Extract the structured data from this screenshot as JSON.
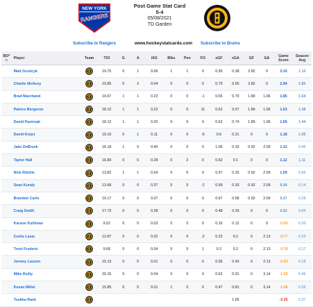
{
  "header": {
    "title": "Post Game Stat Card",
    "score": "5-4",
    "date": "05/08/2021",
    "venue": "TD Garden",
    "subscribe_rangers": "Subscribe to Rangers",
    "subscribe_bruins": "Subscribe to Bruins",
    "website": "www.hockeystatcards.com",
    "rangers_logo_text_top": "NEW YORK",
    "rangers_logo_text_bottom": "RANGERS"
  },
  "columns": {
    "bo": "BO*",
    "player": "Player",
    "team": "Team",
    "toi": "TOI",
    "g": "G",
    "a": "A",
    "ixg": "iXG",
    "blks": "Blks",
    "pen": "Pen",
    "fo": "FO",
    "xgf": "xGF",
    "xga": "xGA",
    "gf": "GF",
    "ga": "GA",
    "gs1": "Game",
    "gs2": "Score",
    "sa1": "Season",
    "sa2": "Avg"
  },
  "colors": {
    "link": "#1f6fd1",
    "gs_blue": "#1f5fcc",
    "gs_lightblue": "#3d8fd9",
    "gs_orange": "#f0a030",
    "gs_red": "#d63a2a",
    "bruins_gold": "#fcb514",
    "rangers_blue": "#0038a8"
  },
  "players": [
    {
      "bo": "",
      "name": "Matt Grzelcyk",
      "toi": "19.70",
      "g": "0",
      "a": "1",
      "ixg": "0.06",
      "blks": "1",
      "pen": "1",
      "fo": "0",
      "xgf": "0.95",
      "xga": "0.38",
      "gf": "2.82",
      "ga": "0",
      "gs": "3.10",
      "sa": "1.10",
      "gsc": "#1f5fcc",
      "sac": "#1f5fcc"
    },
    {
      "bo": "",
      "name": "Charlie McAvoy",
      "toi": "23.85",
      "g": "0",
      "a": "2",
      "ixg": "0.04",
      "blks": "0",
      "pen": "0",
      "fo": "0",
      "xgf": "0.79",
      "xga": "0.55",
      "gf": "2.82",
      "ga": "0",
      "gs": "2.94",
      "sa": "1.85",
      "gsc": "#1f5fcc",
      "sac": "#1f5fcc"
    },
    {
      "bo": "",
      "name": "Brad Marchand",
      "toi": "19.67",
      "g": "1",
      "a": "1",
      "ixg": "0.22",
      "blks": "0",
      "pen": "0",
      "fo": "-1",
      "xgf": "0.65",
      "xga": "0.79",
      "gf": "1.89",
      "ga": "1.06",
      "gs": "1.85",
      "sa": "1.64",
      "gsc": "#1f5fcc",
      "sac": "#1f5fcc"
    },
    {
      "bo": "",
      "name": "Patrice Bergeron",
      "toi": "18.12",
      "g": "1",
      "a": "1",
      "ixg": "0.22",
      "blks": "0",
      "pen": "0",
      "fo": "11",
      "xgf": "0.62",
      "xga": "0.57",
      "gf": "1.89",
      "ga": "1.06",
      "gs": "1.63",
      "sa": "1.38",
      "gsc": "#1f5fcc",
      "sac": "#1f5fcc"
    },
    {
      "bo": "",
      "name": "David Pastrnak",
      "toi": "18.12",
      "g": "1",
      "a": "1",
      "ixg": "0.20",
      "blks": "0",
      "pen": "0",
      "fo": "0",
      "xgf": "0.62",
      "xga": "0.74",
      "gf": "1.89",
      "ga": "1.06",
      "gs": "1.56",
      "sa": "1.44",
      "gsc": "#1f5fcc",
      "sac": "#1f5fcc"
    },
    {
      "bo": "",
      "name": "David Krejci",
      "toi": "19.10",
      "g": "0",
      "a": "1",
      "ixg": "0.11",
      "blks": "0",
      "pen": "0",
      "fo": "-5",
      "xgf": "0.6",
      "xga": "0.31",
      "gf": "0",
      "ga": "0",
      "gs": "1.18",
      "sa": "1.05",
      "gsc": "#1f5fcc",
      "sac": "#1f5fcc"
    },
    {
      "bo": "",
      "name": "Jake DeBrusk",
      "toi": "16.18",
      "g": "1",
      "a": "0",
      "ixg": "0.40",
      "blks": "0",
      "pen": "0",
      "fo": "0",
      "xgf": "1.06",
      "xga": "0.33",
      "gf": "0.92",
      "ga": "2.09",
      "gs": "1.12",
      "sa": "0.46",
      "gsc": "#1f5fcc",
      "sac": "#3d8fd9"
    },
    {
      "bo": "",
      "name": "Taylor Hall",
      "toi": "16.83",
      "g": "0",
      "a": "0",
      "ixg": "0.28",
      "blks": "0",
      "pen": "2",
      "fo": "0",
      "xgf": "0.62",
      "xga": "0.1",
      "gf": "0",
      "ga": "0",
      "gs": "1.12",
      "sa": "1.11",
      "gsc": "#1f5fcc",
      "sac": "#1f5fcc"
    },
    {
      "bo": "",
      "name": "Nick Ritchie",
      "toi": "13.82",
      "g": "1",
      "a": "1",
      "ixg": "0.54",
      "blks": "0",
      "pen": "0",
      "fo": "0",
      "xgf": "0.97",
      "xga": "0.33",
      "gf": "0.92",
      "ga": "2.09",
      "gs": "1.09",
      "sa": "0.56",
      "gsc": "#1f5fcc",
      "sac": "#3d8fd9"
    },
    {
      "bo": "",
      "name": "Sean Kuraly",
      "toi": "13.68",
      "g": "0",
      "a": "0",
      "ixg": "0.37",
      "blks": "0",
      "pen": "0",
      "fo": "-2",
      "xgf": "0.99",
      "xga": "0.33",
      "gf": "0.92",
      "ga": "2.09",
      "gs": "0.34",
      "sa": "0.14",
      "gsc": "#3d8fd9",
      "sac": "#3d8fd9"
    },
    {
      "bo": "",
      "name": "Brandon Carlo",
      "toi": "19.17",
      "g": "0",
      "a": "0",
      "ixg": "0.07",
      "blks": "0",
      "pen": "0",
      "fo": "0",
      "xgf": "0.67",
      "xga": "0.68",
      "gf": "0.92",
      "ga": "2.09",
      "gs": "0.27",
      "sa": "0.29",
      "gsc": "#3d8fd9",
      "sac": "#3d8fd9"
    },
    {
      "bo": "",
      "name": "Craig Smith",
      "toi": "17.73",
      "g": "0",
      "a": "0",
      "ixg": "0.28",
      "blks": "0",
      "pen": "0",
      "fo": "0",
      "xgf": "0.48",
      "xga": "0.29",
      "gf": "0",
      "ga": "0",
      "gs": "0.22",
      "sa": "0.84",
      "gsc": "#3d8fd9",
      "sac": "#3d8fd9"
    },
    {
      "bo": "",
      "name": "Karson Kuhlman",
      "toi": "9.52",
      "g": "0",
      "a": "0",
      "ixg": "0.03",
      "blks": "0",
      "pen": "0",
      "fo": "0",
      "xgf": "0.16",
      "xga": "0.12",
      "gf": "0",
      "ga": "0",
      "gs": "-0.03",
      "sa": "0.20",
      "gsc": "#f0a030",
      "sac": "#3d8fd9"
    },
    {
      "bo": "",
      "name": "Curtis Lazar",
      "toi": "12.87",
      "g": "0",
      "a": "0",
      "ixg": "0.02",
      "blks": "0",
      "pen": "0",
      "fo": "-2",
      "xgf": "0.22",
      "xga": "0.2",
      "gf": "0",
      "ga": "2.13",
      "gs": "-0.77",
      "sa": "0.25",
      "gsc": "#f0a030",
      "sac": "#3d8fd9"
    },
    {
      "bo": "",
      "name": "Trent Frederic",
      "toi": "9.68",
      "g": "0",
      "a": "0",
      "ixg": "0.04",
      "blks": "0",
      "pen": "0",
      "fo": "1",
      "xgf": "0.2",
      "xga": "0.2",
      "gf": "0",
      "ga": "2.13",
      "gs": "-0.78",
      "sa": "0.17",
      "gsc": "#f0a030",
      "sac": "#3d8fd9"
    },
    {
      "bo": "",
      "name": "Jeremy Lauzon",
      "toi": "15.13",
      "g": "0",
      "a": "0",
      "ixg": "0.01",
      "blks": "0",
      "pen": "0",
      "fo": "0",
      "xgf": "0.56",
      "xga": "0.43",
      "gf": "0",
      "ga": "2.13",
      "gs": "-0.93",
      "sa": "0.18",
      "gsc": "#f0a030",
      "sac": "#3d8fd9"
    },
    {
      "bo": "",
      "name": "Mike Reilly",
      "toi": "20.15",
      "g": "0",
      "a": "0",
      "ixg": "0.04",
      "blks": "0",
      "pen": "0",
      "fo": "0",
      "xgf": "0.62",
      "xga": "0.91",
      "gf": "0",
      "ga": "3.14",
      "gs": "-1.03",
      "sa": "0.49",
      "gsc": "#f0a030",
      "sac": "#3d8fd9"
    },
    {
      "bo": "",
      "name": "Kevan Miller",
      "toi": "15.85",
      "g": "0",
      "a": "0",
      "ixg": "0.01",
      "blks": "1",
      "pen": "0",
      "fo": "0",
      "xgf": "0.47",
      "xga": "0.81",
      "gf": "0",
      "ga": "3.14",
      "gs": "-1.48",
      "sa": "0.35",
      "gsc": "#f0a030",
      "sac": "#3d8fd9"
    },
    {
      "bo": "",
      "name": "Tuukka Rask",
      "toi": "",
      "g": "",
      "a": "",
      "ixg": "",
      "blks": "",
      "pen": "",
      "fo": "",
      "xgf": "",
      "xga": "1.65",
      "gf": "",
      "ga": "",
      "gs": "-3.35",
      "sa": "0.37",
      "gsc": "#d63a2a",
      "sac": "#3d8fd9"
    }
  ]
}
